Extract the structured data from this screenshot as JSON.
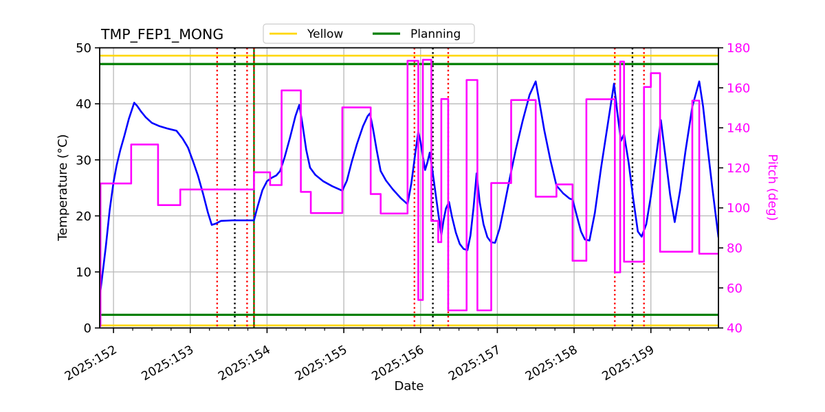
{
  "title": "TMP_FEP1_MONG",
  "legend": {
    "items": [
      {
        "label": "Yellow",
        "color": "#FFD700"
      },
      {
        "label": "Planning",
        "color": "#007F00"
      }
    ]
  },
  "axes": {
    "xlabel": "Date",
    "ylabel_left": "Temperature (°C)",
    "ylabel_right": "Pitch (deg)"
  },
  "chart_data": {
    "type": "line",
    "title": "TMP_FEP1_MONG",
    "xlabel": "Date",
    "ylabel_left": "Temperature (°C)",
    "ylabel_right": "Pitch (deg)",
    "grid": true,
    "legend_position": "top-center",
    "xlim": [
      151.82,
      159.88
    ],
    "ylim_left": [
      0,
      50
    ],
    "ylim_right": [
      40,
      180
    ],
    "x_minor_step": 0.25,
    "x_ticks": [
      {
        "v": 152,
        "label": "2025:152"
      },
      {
        "v": 153,
        "label": "2025:153"
      },
      {
        "v": 154,
        "label": "2025:154"
      },
      {
        "v": 155,
        "label": "2025:155"
      },
      {
        "v": 156,
        "label": "2025:156"
      },
      {
        "v": 157,
        "label": "2025:157"
      },
      {
        "v": 158,
        "label": "2025:158"
      },
      {
        "v": 159,
        "label": "2025:159"
      }
    ],
    "y_ticks_left": [
      0,
      10,
      20,
      30,
      40,
      50
    ],
    "y_ticks_right": [
      40,
      60,
      80,
      100,
      120,
      140,
      160,
      180
    ],
    "series": [
      {
        "name": "Temperature",
        "axis": "left",
        "color": "#0000FF",
        "width": 2.6,
        "style": "line",
        "points": [
          [
            151.82,
            5.5
          ],
          [
            151.86,
            10.0
          ],
          [
            151.9,
            14.5
          ],
          [
            151.95,
            21.0
          ],
          [
            152.0,
            26.0
          ],
          [
            152.04,
            29.0
          ],
          [
            152.09,
            31.8
          ],
          [
            152.14,
            34.2
          ],
          [
            152.2,
            37.3
          ],
          [
            152.27,
            40.2
          ],
          [
            152.31,
            39.6
          ],
          [
            152.36,
            38.6
          ],
          [
            152.42,
            37.6
          ],
          [
            152.5,
            36.6
          ],
          [
            152.6,
            36.0
          ],
          [
            152.7,
            35.6
          ],
          [
            152.82,
            35.2
          ],
          [
            152.9,
            33.8
          ],
          [
            152.97,
            32.2
          ],
          [
            153.04,
            29.6
          ],
          [
            153.1,
            27.2
          ],
          [
            153.17,
            23.8
          ],
          [
            153.23,
            20.6
          ],
          [
            153.28,
            18.4
          ],
          [
            153.33,
            18.6
          ],
          [
            153.4,
            19.1
          ],
          [
            153.55,
            19.2
          ],
          [
            153.7,
            19.2
          ],
          [
            153.83,
            19.2
          ],
          [
            153.88,
            21.8
          ],
          [
            153.94,
            24.6
          ],
          [
            154.0,
            26.2
          ],
          [
            154.06,
            26.8
          ],
          [
            154.12,
            27.2
          ],
          [
            154.17,
            28.0
          ],
          [
            154.23,
            30.5
          ],
          [
            154.3,
            34.0
          ],
          [
            154.37,
            37.8
          ],
          [
            154.42,
            39.8
          ],
          [
            154.46,
            36.5
          ],
          [
            154.51,
            31.8
          ],
          [
            154.56,
            28.6
          ],
          [
            154.63,
            27.3
          ],
          [
            154.73,
            26.2
          ],
          [
            154.85,
            25.3
          ],
          [
            154.98,
            24.5
          ],
          [
            155.04,
            26.3
          ],
          [
            155.1,
            29.5
          ],
          [
            155.17,
            32.8
          ],
          [
            155.25,
            36.0
          ],
          [
            155.31,
            37.8
          ],
          [
            155.34,
            38.3
          ],
          [
            155.38,
            35.6
          ],
          [
            155.43,
            31.6
          ],
          [
            155.48,
            28.0
          ],
          [
            155.55,
            26.3
          ],
          [
            155.64,
            24.7
          ],
          [
            155.74,
            23.2
          ],
          [
            155.83,
            22.1
          ],
          [
            155.88,
            25.8
          ],
          [
            155.93,
            31.0
          ],
          [
            155.97,
            35.0
          ],
          [
            156.0,
            33.2
          ],
          [
            156.03,
            30.6
          ],
          [
            156.06,
            28.2
          ],
          [
            156.09,
            29.6
          ],
          [
            156.12,
            31.3
          ],
          [
            156.15,
            28.5
          ],
          [
            156.19,
            24.5
          ],
          [
            156.23,
            20.5
          ],
          [
            156.27,
            16.6
          ],
          [
            156.3,
            19.2
          ],
          [
            156.33,
            21.3
          ],
          [
            156.37,
            22.5
          ],
          [
            156.41,
            19.8
          ],
          [
            156.46,
            17.0
          ],
          [
            156.51,
            15.0
          ],
          [
            156.56,
            14.1
          ],
          [
            156.61,
            13.9
          ],
          [
            156.65,
            16.5
          ],
          [
            156.69,
            21.5
          ],
          [
            156.73,
            27.6
          ],
          [
            156.77,
            22.5
          ],
          [
            156.82,
            18.5
          ],
          [
            156.87,
            16.2
          ],
          [
            156.92,
            15.3
          ],
          [
            156.97,
            15.2
          ],
          [
            157.03,
            17.8
          ],
          [
            157.09,
            21.8
          ],
          [
            157.16,
            26.6
          ],
          [
            157.24,
            31.8
          ],
          [
            157.33,
            37.0
          ],
          [
            157.42,
            41.6
          ],
          [
            157.5,
            44.0
          ],
          [
            157.55,
            40.2
          ],
          [
            157.61,
            35.4
          ],
          [
            157.69,
            30.0
          ],
          [
            157.77,
            25.4
          ],
          [
            157.86,
            24.0
          ],
          [
            157.94,
            23.1
          ],
          [
            157.98,
            22.9
          ],
          [
            158.04,
            19.8
          ],
          [
            158.09,
            17.2
          ],
          [
            158.14,
            15.8
          ],
          [
            158.2,
            15.6
          ],
          [
            158.27,
            20.5
          ],
          [
            158.35,
            28.5
          ],
          [
            158.44,
            36.5
          ],
          [
            158.52,
            43.6
          ],
          [
            158.56,
            38.8
          ],
          [
            158.61,
            33.4
          ],
          [
            158.65,
            34.6
          ],
          [
            158.71,
            29.5
          ],
          [
            158.77,
            23.0
          ],
          [
            158.83,
            17.2
          ],
          [
            158.88,
            16.3
          ],
          [
            158.94,
            18.5
          ],
          [
            159.0,
            23.5
          ],
          [
            159.07,
            30.8
          ],
          [
            159.13,
            37.1
          ],
          [
            159.19,
            30.5
          ],
          [
            159.25,
            23.8
          ],
          [
            159.31,
            18.9
          ],
          [
            159.38,
            24.5
          ],
          [
            159.45,
            31.5
          ],
          [
            159.54,
            39.5
          ],
          [
            159.63,
            44.0
          ],
          [
            159.68,
            39.5
          ],
          [
            159.74,
            32.0
          ],
          [
            159.8,
            25.0
          ],
          [
            159.88,
            16.2
          ]
        ]
      },
      {
        "name": "Pitch",
        "axis": "right",
        "color": "#FF00FF",
        "width": 2.6,
        "style": "step-post",
        "points": [
          [
            151.82,
            41.0
          ],
          [
            151.83,
            112.2
          ],
          [
            152.23,
            131.7
          ],
          [
            152.58,
            101.4
          ],
          [
            152.87,
            109.2
          ],
          [
            153.83,
            117.8
          ],
          [
            154.04,
            111.4
          ],
          [
            154.19,
            158.7
          ],
          [
            154.44,
            108.0
          ],
          [
            154.57,
            97.4
          ],
          [
            154.98,
            150.2
          ],
          [
            155.35,
            106.9
          ],
          [
            155.48,
            97.2
          ],
          [
            155.83,
            173.5
          ],
          [
            155.97,
            54.0
          ],
          [
            156.03,
            174.0
          ],
          [
            156.14,
            93.5
          ],
          [
            156.23,
            82.9
          ],
          [
            156.27,
            154.4
          ],
          [
            156.36,
            48.8
          ],
          [
            156.6,
            163.9
          ],
          [
            156.74,
            48.8
          ],
          [
            156.92,
            112.4
          ],
          [
            157.18,
            153.9
          ],
          [
            157.5,
            105.6
          ],
          [
            157.77,
            111.7
          ],
          [
            157.98,
            73.6
          ],
          [
            158.16,
            154.3
          ],
          [
            158.53,
            67.8
          ],
          [
            158.6,
            173.1
          ],
          [
            158.65,
            73.1
          ],
          [
            158.91,
            160.4
          ],
          [
            159.0,
            167.3
          ],
          [
            159.12,
            78.1
          ],
          [
            159.54,
            153.6
          ],
          [
            159.63,
            77.1
          ],
          [
            159.88,
            77.1
          ]
        ]
      }
    ],
    "limit_lines": [
      {
        "name": "Yellow",
        "color": "#FFD700",
        "width": 2.6,
        "y": 48.6,
        "axis": "left"
      },
      {
        "name": "Yellow",
        "color": "#FFD700",
        "width": 2.6,
        "y": 0.45,
        "axis": "left"
      },
      {
        "name": "Planning",
        "color": "#007F00",
        "width": 3.2,
        "y": 47.1,
        "axis": "left"
      },
      {
        "name": "Planning",
        "color": "#007F00",
        "width": 3.2,
        "y": 2.35,
        "axis": "left"
      }
    ],
    "event_lines": [
      {
        "x": 153.35,
        "color": "#FF0000",
        "style": "dotted"
      },
      {
        "x": 153.58,
        "color": "#000000",
        "style": "dotted"
      },
      {
        "x": 153.74,
        "color": "#FF0000",
        "style": "dotted"
      },
      {
        "x": 153.83,
        "color": "#007F00",
        "style": "solid"
      },
      {
        "x": 153.83,
        "color": "#FF0000",
        "style": "dotted"
      },
      {
        "x": 155.92,
        "color": "#FF0000",
        "style": "dotted"
      },
      {
        "x": 156.16,
        "color": "#000000",
        "style": "dotted"
      },
      {
        "x": 156.36,
        "color": "#FF0000",
        "style": "dotted"
      },
      {
        "x": 158.53,
        "color": "#FF0000",
        "style": "dotted"
      },
      {
        "x": 158.76,
        "color": "#000000",
        "style": "dotted"
      },
      {
        "x": 158.91,
        "color": "#FF0000",
        "style": "dotted"
      }
    ]
  }
}
